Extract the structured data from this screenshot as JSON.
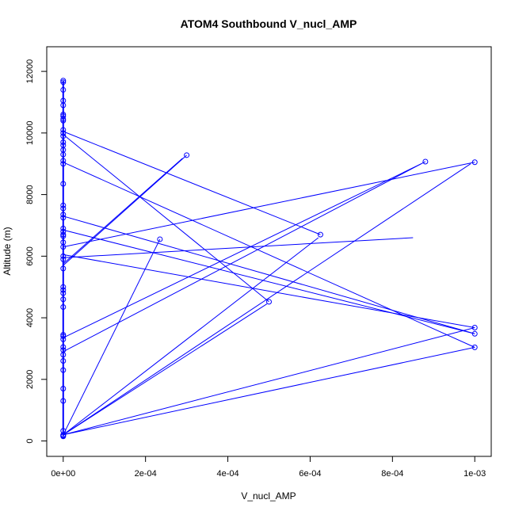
{
  "chart_data": {
    "type": "scatter",
    "title": "ATOM4 Southbound V_nucl_AMP",
    "xlabel": "V_nucl_AMP",
    "ylabel": "Altitude (m)",
    "xlim": [
      -4e-05,
      0.00104
    ],
    "ylim": [
      -500,
      12800
    ],
    "x_ticks": [
      0,
      0.0002,
      0.0004,
      0.0006,
      0.0008,
      0.001
    ],
    "x_tick_labels": [
      "0e+00",
      "2e-04",
      "4e-04",
      "6e-04",
      "8e-04",
      "1e-03"
    ],
    "y_ticks": [
      0,
      2000,
      4000,
      6000,
      8000,
      10000,
      12000
    ],
    "y_tick_labels": [
      "0",
      "2000",
      "4000",
      "6000",
      "8000",
      "10000",
      "12000"
    ],
    "marker": "open-circle",
    "connect_points": true,
    "color": "#0000ff",
    "series": [
      {
        "points": [
          [
            0,
            150
          ],
          [
            0,
            180
          ],
          [
            0,
            200
          ],
          [
            0,
            170
          ],
          [
            0,
            330
          ],
          [
            0,
            1300
          ],
          [
            0,
            1700
          ],
          [
            0,
            2300
          ],
          [
            0,
            2600
          ],
          [
            0,
            2800
          ],
          [
            0,
            2950
          ],
          [
            0,
            3050
          ],
          [
            0,
            3300
          ],
          [
            0,
            3400
          ],
          [
            0,
            3450
          ],
          [
            0,
            4350
          ],
          [
            0,
            4600
          ],
          [
            0,
            4800
          ],
          [
            0,
            4900
          ],
          [
            0,
            5000
          ],
          [
            0,
            5600
          ],
          [
            0,
            5900
          ],
          [
            0,
            6000
          ],
          [
            0,
            6300
          ],
          [
            0,
            6450
          ],
          [
            0,
            6650
          ],
          [
            0,
            6700
          ],
          [
            0,
            6800
          ],
          [
            0,
            6900
          ],
          [
            0,
            7250
          ],
          [
            0,
            7350
          ],
          [
            0,
            7550
          ],
          [
            0,
            7650
          ],
          [
            0,
            8350
          ],
          [
            0,
            9000
          ],
          [
            0,
            9100
          ],
          [
            0,
            9300
          ],
          [
            0,
            9450
          ],
          [
            0,
            9600
          ],
          [
            0,
            9700
          ],
          [
            0,
            9900
          ],
          [
            0,
            10000
          ],
          [
            0,
            10100
          ],
          [
            0,
            10400
          ],
          [
            0,
            10450
          ],
          [
            0,
            10550
          ],
          [
            0,
            10600
          ],
          [
            0,
            10900
          ],
          [
            0,
            11050
          ],
          [
            0,
            11400
          ],
          [
            0,
            11650
          ],
          [
            0,
            11700
          ],
          [
            0.0003,
            9280
          ],
          [
            0.000235,
            6550
          ],
          [
            0.0005,
            4520
          ],
          [
            0.000625,
            6700
          ],
          [
            0.00088,
            9070
          ],
          [
            0.001,
            9050
          ],
          [
            0.001,
            3680
          ],
          [
            0.001,
            3480
          ],
          [
            0.001,
            3040
          ]
        ],
        "segments": [
          [
            [
              0,
              5700
            ],
            [
              0.0003,
              9280
            ]
          ],
          [
            [
              0,
              5750
            ],
            [
              0.00029,
              9180
            ]
          ],
          [
            [
              0,
              200
            ],
            [
              0.000235,
              6550
            ]
          ],
          [
            [
              0,
              10050
            ],
            [
              0.000625,
              6700
            ]
          ],
          [
            [
              0,
              9950
            ],
            [
              0.0005,
              4520
            ]
          ],
          [
            [
              0,
              200
            ],
            [
              0.000495,
              4450
            ]
          ],
          [
            [
              0,
              2900
            ],
            [
              0.00088,
              9070
            ]
          ],
          [
            [
              0,
              200
            ],
            [
              0.00062,
              6600
            ]
          ],
          [
            [
              0,
              3350
            ],
            [
              0.00087,
              9000
            ]
          ],
          [
            [
              0,
              6300
            ],
            [
              0.001,
              9050
            ]
          ],
          [
            [
              0,
              200
            ],
            [
              0.00099,
              9000
            ]
          ],
          [
            [
              0,
              9050
            ],
            [
              0.001,
              3040
            ]
          ],
          [
            [
              0,
              7300
            ],
            [
              0.001,
              3480
            ]
          ],
          [
            [
              0,
              6850
            ],
            [
              0.001,
              3480
            ]
          ],
          [
            [
              0,
              6050
            ],
            [
              0.001,
              3680
            ]
          ],
          [
            [
              0,
              5950
            ],
            [
              0.00085,
              6600
            ]
          ],
          [
            [
              0,
              200
            ],
            [
              0.001,
              3680
            ]
          ],
          [
            [
              0,
              200
            ],
            [
              0.001,
              3040
            ]
          ]
        ]
      }
    ]
  }
}
